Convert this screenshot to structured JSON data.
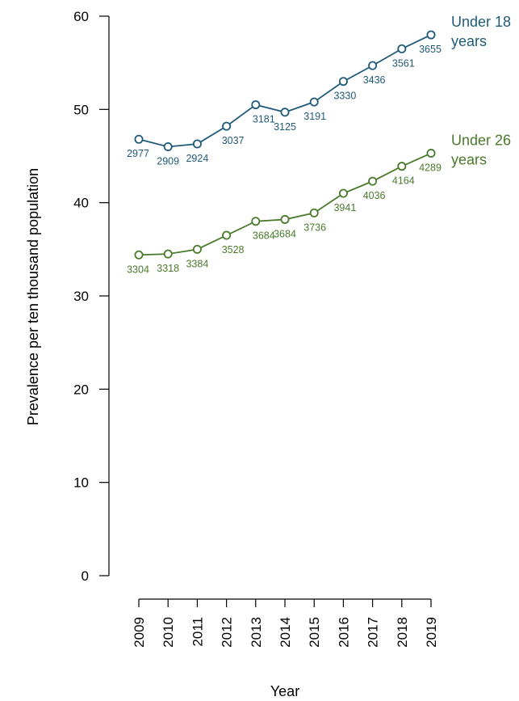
{
  "chart_data": {
    "type": "line",
    "title": "",
    "xlabel": "Year",
    "ylabel": "Prevalence per ten thousand population",
    "x": [
      2009,
      2010,
      2011,
      2012,
      2013,
      2014,
      2015,
      2016,
      2017,
      2018,
      2019
    ],
    "ylim": [
      0,
      60
    ],
    "yticks": [
      0,
      10,
      20,
      30,
      40,
      50,
      60
    ],
    "grid": false,
    "legend": "none",
    "series": [
      {
        "name": "Under 18 years",
        "name_lines": [
          "Under 18",
          "years"
        ],
        "color": "#1f5a7a",
        "values": [
          46.8,
          46.0,
          46.3,
          48.2,
          50.5,
          49.7,
          50.8,
          53.0,
          54.7,
          56.5,
          58.0
        ],
        "labels": [
          "2977",
          "2909",
          "2924",
          "3037",
          "3181",
          "3125",
          "3191",
          "3330",
          "3436",
          "3561",
          "3655"
        ]
      },
      {
        "name": "Under 26 years",
        "name_lines": [
          "Under 26",
          "years"
        ],
        "color": "#4a7a2c",
        "values": [
          34.4,
          34.5,
          35.0,
          36.5,
          38.0,
          38.2,
          38.9,
          41.0,
          42.3,
          43.9,
          45.3
        ],
        "labels": [
          "3304",
          "3318",
          "3384",
          "3528",
          "3684",
          "3684",
          "3736",
          "3941",
          "4036",
          "4164",
          "4289"
        ]
      }
    ]
  }
}
